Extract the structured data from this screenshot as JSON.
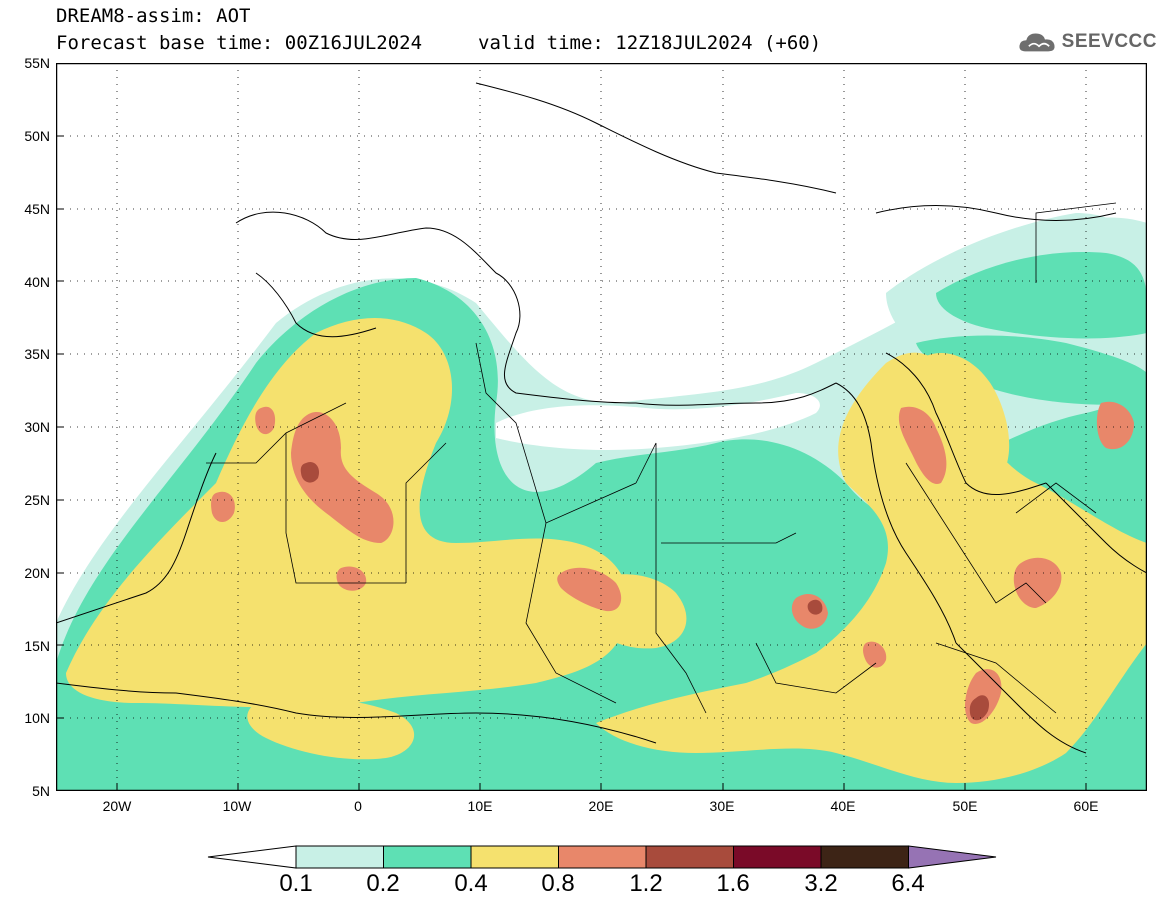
{
  "header": {
    "title": "DREAM8-assim: AOT",
    "base_time": "Forecast base time: 00Z16JUL2024",
    "valid_time": "valid time: 12Z18JUL2024 (+60)"
  },
  "logo": {
    "text": "SEEVCCC",
    "icon": "cloud-icon"
  },
  "map": {
    "lon_range": [
      -25,
      65
    ],
    "lat_range": [
      5,
      55
    ],
    "lat_ticks": [
      "55N",
      "50N",
      "45N",
      "40N",
      "35N",
      "30N",
      "25N",
      "20N",
      "15N",
      "10N",
      "5N"
    ],
    "lon_ticks": [
      "20W",
      "10W",
      "0",
      "10E",
      "20E",
      "30E",
      "40E",
      "50E",
      "60E"
    ],
    "grid": "dotted"
  },
  "colorbar": {
    "levels": [
      "0.1",
      "0.2",
      "0.4",
      "0.8",
      "1.2",
      "1.6",
      "3.2",
      "6.4"
    ],
    "colors": [
      "#c8f0e6",
      "#5ee0b4",
      "#f5e16e",
      "#e8876a",
      "#a84b3c",
      "#7a0a28",
      "#3d2416",
      "#9673b4"
    ],
    "under_color": "#ffffff"
  }
}
